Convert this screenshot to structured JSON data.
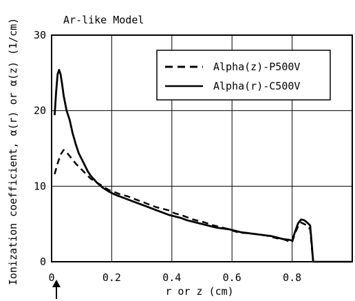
{
  "chart_data": {
    "type": "line",
    "annotation": "Ar-like Model",
    "xlabel": "r or z (cm)",
    "ylabel": "Ionization coefficient, α(r) or α(z) (1/cm)",
    "xlim": [
      0,
      1.0
    ],
    "ylim": [
      0,
      30
    ],
    "x_ticks": [
      0,
      0.2,
      0.4,
      0.6,
      0.8
    ],
    "x_tick_labels": [
      "0",
      "0.2",
      "0.4",
      "0.6",
      "0.8"
    ],
    "y_ticks": [
      0,
      10,
      20,
      30
    ],
    "y_tick_labels": [
      "0",
      "10",
      "20",
      "30"
    ],
    "grid": true,
    "legend_position": "top-right",
    "marker": "up-arrow below x-axis near x=0.02",
    "series": [
      {
        "name": "Alpha(z)-P500V",
        "style": "dashed",
        "color": "#000000",
        "x": [
          0.01,
          0.02,
          0.03,
          0.04,
          0.05,
          0.06,
          0.07,
          0.08,
          0.09,
          0.1,
          0.11,
          0.12,
          0.13,
          0.15,
          0.17,
          0.19,
          0.21,
          0.23,
          0.25,
          0.27,
          0.29,
          0.31,
          0.33,
          0.35,
          0.37,
          0.39,
          0.41,
          0.43,
          0.45,
          0.47,
          0.49,
          0.51,
          0.53,
          0.55,
          0.57,
          0.59,
          0.61,
          0.63,
          0.65,
          0.67,
          0.69,
          0.71,
          0.73,
          0.75,
          0.77,
          0.79,
          0.8,
          0.81,
          0.82,
          0.83,
          0.84,
          0.85,
          0.86,
          0.865,
          0.87
        ],
        "y": [
          11.6,
          13.0,
          14.2,
          14.8,
          14.5,
          14.0,
          13.5,
          13.0,
          12.6,
          12.2,
          11.8,
          11.4,
          11.0,
          10.5,
          10.0,
          9.5,
          9.2,
          8.9,
          8.7,
          8.4,
          8.1,
          7.8,
          7.5,
          7.2,
          7.0,
          6.8,
          6.4,
          6.2,
          5.9,
          5.6,
          5.4,
          5.2,
          4.9,
          4.7,
          4.5,
          4.3,
          4.0,
          3.8,
          3.8,
          3.7,
          3.6,
          3.5,
          3.3,
          3.1,
          3.0,
          2.7,
          2.6,
          3.8,
          4.7,
          5.2,
          5.0,
          4.8,
          4.3,
          2.0,
          0.0
        ]
      },
      {
        "name": "Alpha(r)-C500V",
        "style": "solid",
        "color": "#000000",
        "x": [
          0.01,
          0.015,
          0.02,
          0.025,
          0.03,
          0.035,
          0.04,
          0.05,
          0.06,
          0.07,
          0.08,
          0.09,
          0.1,
          0.11,
          0.12,
          0.13,
          0.15,
          0.17,
          0.19,
          0.21,
          0.23,
          0.25,
          0.27,
          0.29,
          0.31,
          0.33,
          0.35,
          0.37,
          0.39,
          0.41,
          0.43,
          0.45,
          0.47,
          0.49,
          0.51,
          0.53,
          0.55,
          0.57,
          0.59,
          0.61,
          0.63,
          0.65,
          0.67,
          0.69,
          0.71,
          0.73,
          0.75,
          0.77,
          0.79,
          0.8,
          0.81,
          0.82,
          0.83,
          0.84,
          0.85,
          0.86,
          0.865,
          0.87
        ],
        "y": [
          19.4,
          22.5,
          24.8,
          25.4,
          24.8,
          23.5,
          22.0,
          20.0,
          18.8,
          17.0,
          15.6,
          14.4,
          13.6,
          12.8,
          12.0,
          11.4,
          10.5,
          9.8,
          9.3,
          8.9,
          8.6,
          8.3,
          8.0,
          7.7,
          7.4,
          7.1,
          6.8,
          6.5,
          6.2,
          6.0,
          5.8,
          5.5,
          5.3,
          5.1,
          4.9,
          4.7,
          4.5,
          4.4,
          4.3,
          4.1,
          3.9,
          3.8,
          3.7,
          3.6,
          3.5,
          3.4,
          3.2,
          3.0,
          2.9,
          2.8,
          4.0,
          5.1,
          5.6,
          5.5,
          5.2,
          4.8,
          2.5,
          0.0
        ]
      }
    ]
  }
}
